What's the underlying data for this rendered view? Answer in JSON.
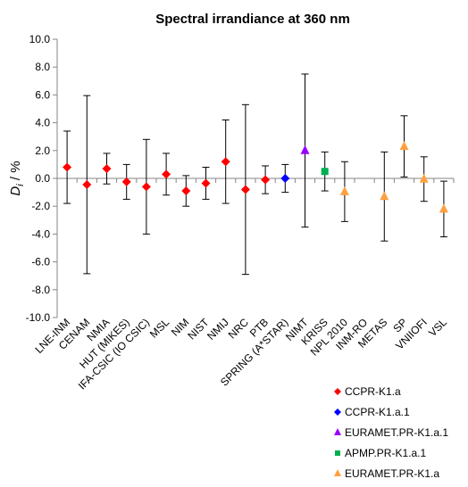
{
  "chart_data": {
    "type": "scatter",
    "title": "Spectral irrandiance at 360 nm",
    "ylabel": "D_i / %",
    "ylim": [
      -10,
      10
    ],
    "ytick_step": 2,
    "ytick_labels": [
      "10.0",
      "8.0",
      "6.0",
      "4.0",
      "2.0",
      "0.0",
      "-2.0",
      "-4.0",
      "-6.0",
      "-8.0",
      "-10.0"
    ],
    "grid": false,
    "legend_placement": "bottom-right",
    "categories": [
      "LNE-INM",
      "CENAM",
      "NMIA",
      "HUT (MIKES)",
      "IFA-CSIC (IO CSIC)",
      "MSL",
      "NIM",
      "NIST",
      "NMIJ",
      "NRC",
      "PTB",
      "SPRING (A*STAR)",
      "NIMT",
      "KRISS",
      "NPL 2010",
      "INM-RO",
      "METAS",
      "SP",
      "VNIIOFI",
      "VSL"
    ],
    "series": [
      {
        "name": "CCPR-K1.a",
        "color": "#ff0000",
        "marker": "diamond",
        "points": [
          {
            "category": "LNE-INM",
            "y": 0.8,
            "err": 2.6
          },
          {
            "category": "CENAM",
            "y": -0.45,
            "err": 6.4
          },
          {
            "category": "NMIA",
            "y": 0.7,
            "err": 1.1
          },
          {
            "category": "HUT (MIKES)",
            "y": -0.25,
            "err": 1.25
          },
          {
            "category": "IFA-CSIC (IO CSIC)",
            "y": -0.6,
            "err": 3.4
          },
          {
            "category": "MSL",
            "y": 0.3,
            "err": 1.5
          },
          {
            "category": "NIM",
            "y": -0.9,
            "err": 1.1
          },
          {
            "category": "NIST",
            "y": -0.35,
            "err": 1.15
          },
          {
            "category": "NMIJ",
            "y": 1.2,
            "err": 3.0
          },
          {
            "category": "NRC",
            "y": -0.8,
            "err": 6.1
          },
          {
            "category": "PTB",
            "y": -0.1,
            "err": 1.0
          }
        ]
      },
      {
        "name": "CCPR-K1.a.1",
        "color": "#0000ff",
        "marker": "diamond",
        "points": [
          {
            "category": "SPRING (A*STAR)",
            "y": 0.0,
            "err": 1.0
          }
        ]
      },
      {
        "name": "EURAMET.PR-K1.a.1",
        "color": "#9900ff",
        "marker": "triangle",
        "points": [
          {
            "category": "NIMT",
            "y": 2.0,
            "err": 5.5
          }
        ]
      },
      {
        "name": "APMP.PR-K1.a.1",
        "color": "#00b050",
        "marker": "square",
        "points": [
          {
            "category": "KRISS",
            "y": 0.5,
            "err": 1.4
          }
        ]
      },
      {
        "name": "EURAMET.PR-K1.a",
        "color": "#ffa040",
        "marker": "triangle",
        "points": [
          {
            "category": "NPL 2010",
            "y": -0.95,
            "err": 2.15
          },
          {
            "category": "METAS",
            "y": -1.3,
            "err": 3.2
          },
          {
            "category": "SP",
            "y": 2.3,
            "err": 2.2
          },
          {
            "category": "VNIIOFI",
            "y": -0.05,
            "err": 1.6
          },
          {
            "category": "VSL",
            "y": -2.2,
            "err": 2.0
          }
        ]
      }
    ]
  }
}
